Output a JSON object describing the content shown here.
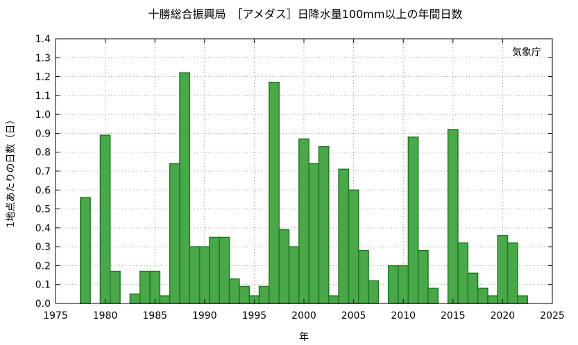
{
  "chart_data": {
    "type": "bar",
    "title": "十勝総合振興局　［アメダス］日降水量100mm以上の年間日数",
    "xlabel": "年",
    "ylabel": "1地点あたりの日数（日）",
    "annotation": "気象庁",
    "xlim": [
      1975,
      2025
    ],
    "ylim": [
      0,
      1.4
    ],
    "x_ticks": [
      1975,
      1980,
      1985,
      1990,
      1995,
      2000,
      2005,
      2010,
      2015,
      2020,
      2025
    ],
    "y_ticks": [
      "0.0",
      "0.1",
      "0.2",
      "0.3",
      "0.4",
      "0.5",
      "0.6",
      "0.7",
      "0.8",
      "0.9",
      "1.0",
      "1.1",
      "1.2",
      "1.3",
      "1.4"
    ],
    "grid": true,
    "bar_color": "#4aa84a",
    "bar_edge_color": "#1e7a1e",
    "x": [
      1976,
      1977,
      1978,
      1979,
      1980,
      1981,
      1982,
      1983,
      1984,
      1985,
      1986,
      1987,
      1988,
      1989,
      1990,
      1991,
      1992,
      1993,
      1994,
      1995,
      1996,
      1997,
      1998,
      1999,
      2000,
      2001,
      2002,
      2003,
      2004,
      2005,
      2006,
      2007,
      2008,
      2009,
      2010,
      2011,
      2012,
      2013,
      2014,
      2015,
      2016,
      2017,
      2018,
      2019,
      2020,
      2021,
      2022,
      2023
    ],
    "values": [
      0,
      0,
      0.56,
      0,
      0.89,
      0.17,
      0,
      0.05,
      0.17,
      0.17,
      0.04,
      0.74,
      1.22,
      0.3,
      0.3,
      0.35,
      0.35,
      0.13,
      0.09,
      0.04,
      0.09,
      1.17,
      0.39,
      0.3,
      0.87,
      0.74,
      0.83,
      0.04,
      0.71,
      0.6,
      0.28,
      0.12,
      0,
      0.2,
      0.2,
      0.88,
      0.28,
      0.08,
      0,
      0.92,
      0.32,
      0.16,
      0.08,
      0.04,
      0.36,
      0.32,
      0.04,
      0
    ]
  }
}
